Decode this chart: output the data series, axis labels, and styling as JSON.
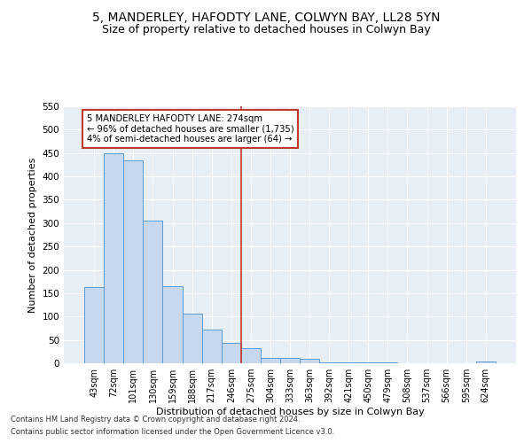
{
  "title": "5, MANDERLEY, HAFODTY LANE, COLWYN BAY, LL28 5YN",
  "subtitle": "Size of property relative to detached houses in Colwyn Bay",
  "xlabel": "Distribution of detached houses by size in Colwyn Bay",
  "ylabel": "Number of detached properties",
  "bar_labels": [
    "43sqm",
    "72sqm",
    "101sqm",
    "130sqm",
    "159sqm",
    "188sqm",
    "217sqm",
    "246sqm",
    "275sqm",
    "304sqm",
    "333sqm",
    "363sqm",
    "392sqm",
    "421sqm",
    "450sqm",
    "479sqm",
    "508sqm",
    "537sqm",
    "566sqm",
    "595sqm",
    "624sqm"
  ],
  "bar_values": [
    163,
    450,
    435,
    305,
    165,
    107,
    72,
    44,
    33,
    12,
    11,
    9,
    1,
    2,
    1,
    1,
    0,
    0,
    0,
    0,
    4
  ],
  "bar_color": "#c5d8ed",
  "bar_edge_color": "#5b9bd5",
  "vline_color": "#c0392b",
  "annotation_title": "5 MANDERLEY HAFODTY LANE: 274sqm",
  "annotation_line1": "← 96% of detached houses are smaller (1,735)",
  "annotation_line2": "4% of semi-detached houses are larger (64) →",
  "annotation_box_color": "#c0392b",
  "ylim": [
    0,
    550
  ],
  "yticks": [
    0,
    50,
    100,
    150,
    200,
    250,
    300,
    350,
    400,
    450,
    500,
    550
  ],
  "footnote1": "Contains HM Land Registry data © Crown copyright and database right 2024.",
  "footnote2": "Contains public sector information licensed under the Open Government Licence v3.0.",
  "bg_color": "#e8eef6",
  "title_fontsize": 10,
  "subtitle_fontsize": 9,
  "footnote_fontsize": 6
}
